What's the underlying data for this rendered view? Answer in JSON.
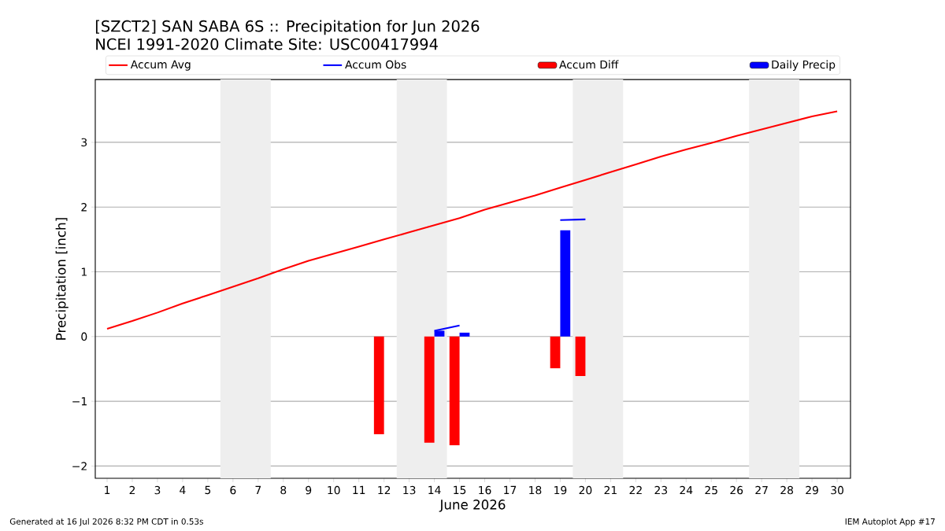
{
  "chart_data": {
    "type": "bar",
    "title": "[SZCT2] SAN SABA 6S :: Precipitation for Jun 2026",
    "subtitle": "NCEI 1991-2020 Climate Site: USC00417994",
    "xlabel": "June 2026",
    "ylabel": "Precipitation [inch]",
    "annotations": [
      "Generated at 16 Jul 2026 8:32 PM CDT in 0.53s",
      "IEM Autoplot App #17"
    ],
    "series": [
      {
        "name": "Accum Avg",
        "type": "line",
        "color": "#ff0000",
        "x": [
          1,
          2,
          3,
          4,
          5,
          6,
          7,
          8,
          9,
          10,
          11,
          12,
          13,
          14,
          15,
          16,
          17,
          18,
          19,
          20,
          21,
          22,
          23,
          24,
          25,
          26,
          27,
          28,
          29,
          30
        ],
        "values": [
          0.12,
          0.24,
          0.37,
          0.51,
          0.64,
          0.77,
          0.9,
          1.04,
          1.17,
          1.28,
          1.39,
          1.5,
          1.61,
          1.72,
          1.83,
          1.96,
          2.07,
          2.18,
          2.3,
          2.42,
          2.54,
          2.66,
          2.78,
          2.89,
          2.99,
          3.1,
          3.2,
          3.3,
          3.4,
          3.48
        ]
      },
      {
        "name": "Accum Obs",
        "type": "line",
        "color": "#0000ff",
        "x": [
          14,
          15,
          16,
          17,
          18,
          19,
          20
        ],
        "values": [
          0.09,
          0.17,
          null,
          null,
          null,
          1.8,
          1.81
        ]
      },
      {
        "name": "Accum Diff",
        "color": "#ff0000",
        "x": [
          12,
          14,
          15,
          19,
          20
        ],
        "values": [
          -1.51,
          -1.64,
          -1.68,
          -0.49,
          -0.61
        ]
      },
      {
        "name": "Daily Precip",
        "color": "#0000ff",
        "x": [
          14,
          15,
          19
        ],
        "values": [
          0.09,
          0.06,
          1.64
        ]
      }
    ],
    "bands": [
      {
        "axis": "x",
        "from": 5.5,
        "to": 7.5,
        "color": "#eeeeee"
      },
      {
        "axis": "x",
        "from": 12.5,
        "to": 14.5,
        "color": "#eeeeee"
      },
      {
        "axis": "x",
        "from": 19.5,
        "to": 21.5,
        "color": "#eeeeee"
      },
      {
        "axis": "x",
        "from": 26.5,
        "to": 28.5,
        "color": "#eeeeee"
      }
    ],
    "xlim": [
      0.53,
      30.53
    ],
    "ylim": [
      -2.19,
      3.97
    ],
    "xticks": [
      1,
      2,
      3,
      4,
      5,
      6,
      7,
      8,
      9,
      10,
      11,
      12,
      13,
      14,
      15,
      16,
      17,
      18,
      19,
      20,
      21,
      22,
      23,
      24,
      25,
      26,
      27,
      28,
      29,
      30
    ],
    "yticks": [
      {
        "value": -2,
        "label": "−2"
      },
      {
        "value": -1,
        "label": "−1"
      },
      0,
      1,
      2,
      3
    ],
    "grid": "y",
    "legend": "top"
  }
}
